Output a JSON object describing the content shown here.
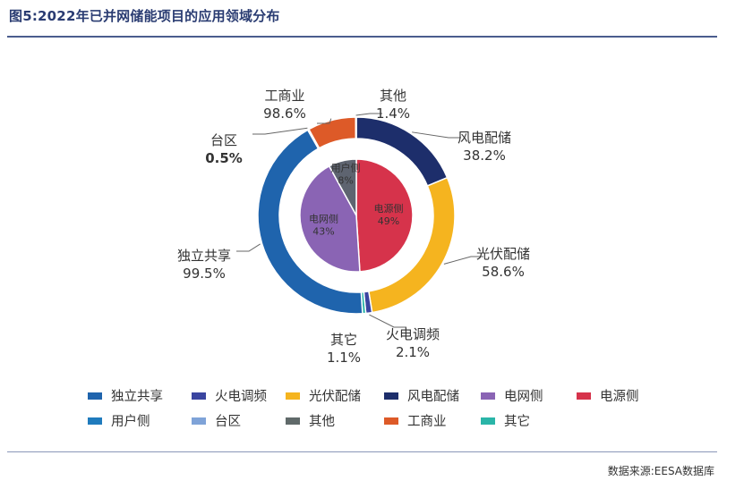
{
  "title": "图5:2022年已并网储能项目的应用领域分布",
  "source": "数据来源:EESA数据库",
  "chart_data": {
    "type": "pie",
    "subtype": "nested-donut",
    "title": "图5:2022年已并网储能项目的应用领域分布",
    "inner_pie": {
      "slices": [
        {
          "label": "电源侧",
          "value_label": "49%",
          "value": 49,
          "color": "#d6334b"
        },
        {
          "label": "电网侧",
          "value_label": "43%",
          "value": 43,
          "color": "#8a64b4"
        },
        {
          "label": "用户侧",
          "value_label": "8%",
          "value": 8,
          "color": "#5e6470"
        }
      ]
    },
    "outer_ring": {
      "slices": [
        {
          "label": "风电配储",
          "value_label": "38.2%",
          "value": 38.2,
          "parent": "电源侧",
          "color": "#1d2e6b",
          "bold": false
        },
        {
          "label": "光伏配储",
          "value_label": "58.6%",
          "value": 58.6,
          "parent": "电源侧",
          "color": "#f5b41f",
          "bold": false
        },
        {
          "label": "火电调频",
          "value_label": "2.1%",
          "value": 2.1,
          "parent": "电源侧",
          "color": "#3a45a0",
          "bold": false
        },
        {
          "label": "其它",
          "value_label": "1.1%",
          "value": 1.1,
          "parent": "电源侧",
          "color": "#2ab5a8",
          "bold": false
        },
        {
          "label": "独立共享",
          "value_label": "99.5%",
          "value": 99.5,
          "parent": "电网侧",
          "color": "#1f64ad",
          "bold": false
        },
        {
          "label": "台区",
          "value_label": "0.5%",
          "value": 0.5,
          "parent": "电网侧",
          "color": "#7fa3d8",
          "bold": true
        },
        {
          "label": "工商业",
          "value_label": "98.6%",
          "value": 98.6,
          "parent": "用户侧",
          "color": "#dd5a28",
          "bold": false
        },
        {
          "label": "其他",
          "value_label": "1.4%",
          "value": 1.4,
          "parent": "用户侧",
          "color": "#606a6a",
          "bold": false
        }
      ]
    },
    "legend": {
      "placement": "bottom",
      "rows": [
        [
          {
            "label": "独立共享",
            "color": "#1f64ad"
          },
          {
            "label": "火电调频",
            "color": "#3a45a0"
          },
          {
            "label": "光伏配储",
            "color": "#f5b41f"
          },
          {
            "label": "风电配储",
            "color": "#1d2e6b"
          },
          {
            "label": "电网侧",
            "color": "#8a64b4"
          },
          {
            "label": "电源侧",
            "color": "#d6334b"
          }
        ],
        [
          {
            "label": "用户侧",
            "color": "#1f7bbd"
          },
          {
            "label": "台区",
            "color": "#7fa3d8"
          },
          {
            "label": "其他",
            "color": "#606a6a"
          },
          {
            "label": "工商业",
            "color": "#dd5a28"
          },
          {
            "label": "其它",
            "color": "#2ab5a8"
          }
        ]
      ]
    }
  }
}
